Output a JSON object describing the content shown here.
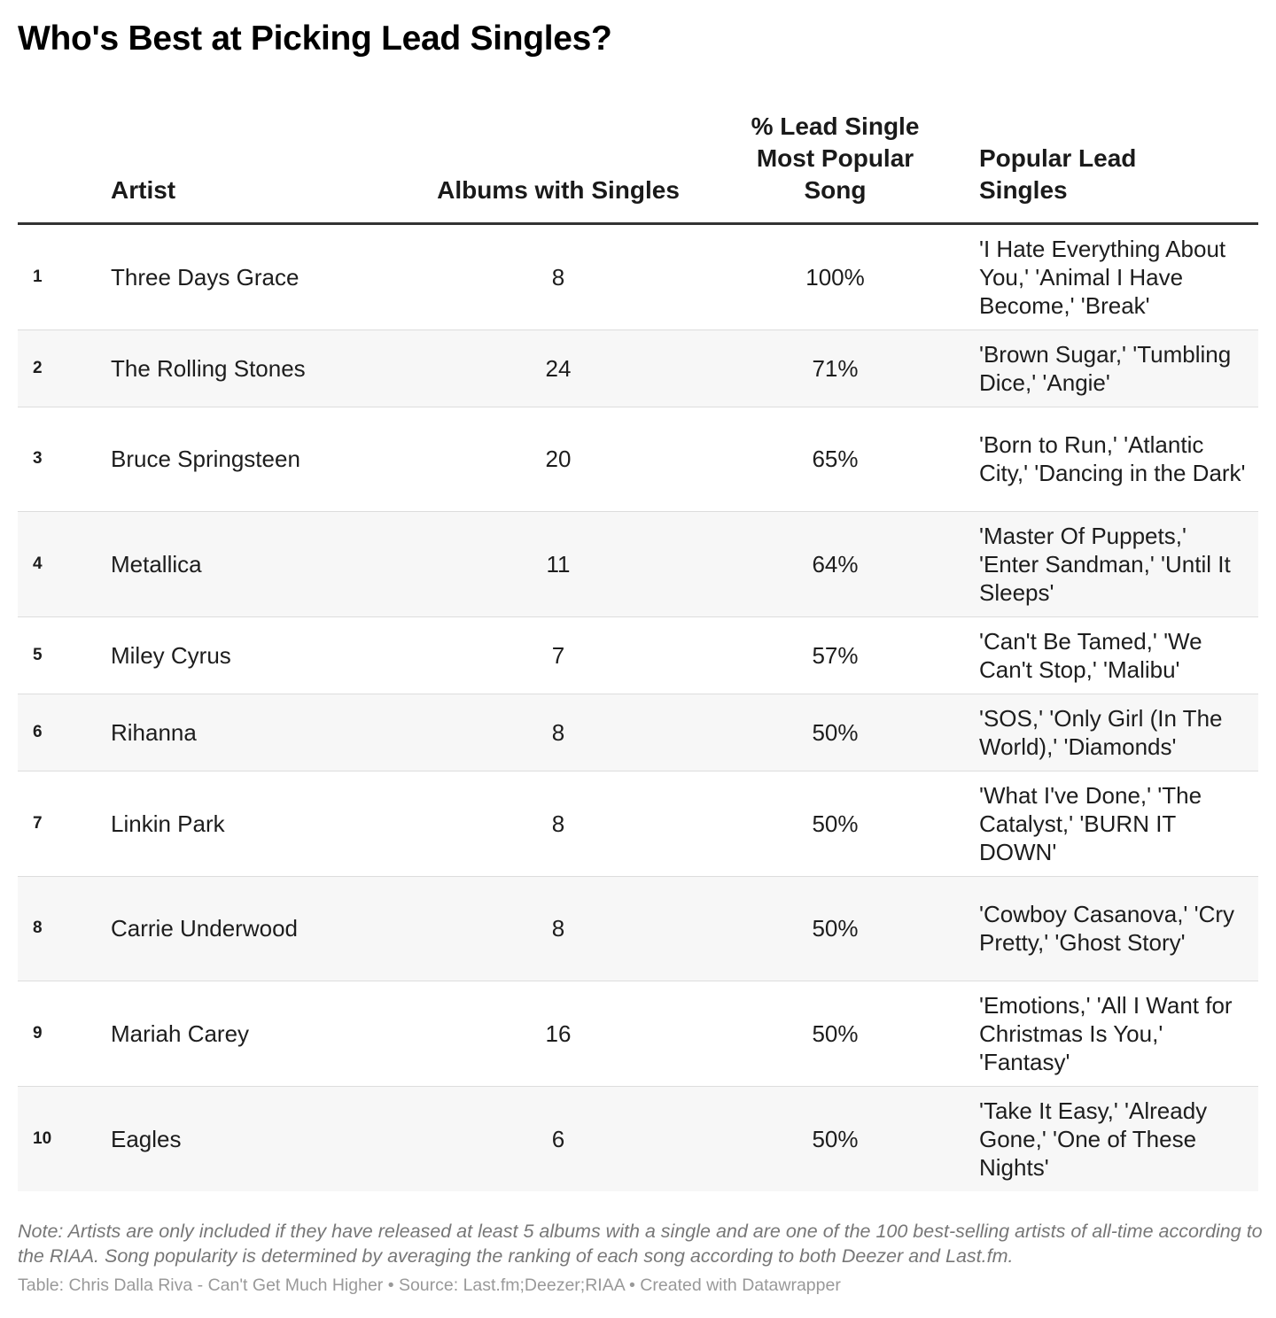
{
  "chart_data": {
    "type": "table",
    "title": "Who's Best at Picking Lead Singles?",
    "columns": {
      "rank": "",
      "artist": "Artist",
      "albums": "Albums with Singles",
      "pct": "% Lead Single Most Popular Song",
      "songs": "Popular Lead Singles"
    },
    "rows": [
      {
        "rank": "1",
        "artist": "Three Days Grace",
        "albums": "8",
        "pct": "100%",
        "songs": "'I Hate Everything About You,' 'Animal I Have Become,' 'Break'"
      },
      {
        "rank": "2",
        "artist": "The Rolling Stones",
        "albums": "24",
        "pct": "71%",
        "songs": "'Brown Sugar,' 'Tumbling Dice,' 'Angie'"
      },
      {
        "rank": "3",
        "artist": "Bruce Springsteen",
        "albums": "20",
        "pct": "65%",
        "songs": "'Born to Run,' 'Atlantic City,' 'Dancing in the Dark'"
      },
      {
        "rank": "4",
        "artist": "Metallica",
        "albums": "11",
        "pct": "64%",
        "songs": "'Master Of Puppets,' 'Enter Sandman,' 'Until It Sleeps'"
      },
      {
        "rank": "5",
        "artist": "Miley Cyrus",
        "albums": "7",
        "pct": "57%",
        "songs": "'Can't Be Tamed,' 'We Can't Stop,' 'Malibu'"
      },
      {
        "rank": "6",
        "artist": "Rihanna",
        "albums": "8",
        "pct": "50%",
        "songs": "'SOS,' 'Only Girl (In The World),' 'Diamonds'"
      },
      {
        "rank": "7",
        "artist": "Linkin Park",
        "albums": "8",
        "pct": "50%",
        "songs": "'What I've Done,' 'The Catalyst,' 'BURN IT DOWN'"
      },
      {
        "rank": "8",
        "artist": "Carrie Underwood",
        "albums": "8",
        "pct": "50%",
        "songs": "'Cowboy Casanova,' 'Cry Pretty,' 'Ghost Story'"
      },
      {
        "rank": "9",
        "artist": "Mariah Carey",
        "albums": "16",
        "pct": "50%",
        "songs": "'Emotions,' 'All I Want for Christmas Is You,' 'Fantasy'"
      },
      {
        "rank": "10",
        "artist": "Eagles",
        "albums": "6",
        "pct": "50%",
        "songs": "'Take It Easy,' 'Already Gone,' 'One of These Nights'"
      }
    ],
    "note": "Note: Artists are only included if they have released at least 5 albums with a single and are one of the 100 best-selling artists of all-time according to the RIAA. Song popularity is determined by averaging the ranking of each song according to both Deezer and Last.fm.",
    "credit": "Table: Chris Dalla Riva - Can't Get Much Higher • Source: Last.fm;Deezer;RIAA • Created with Datawrapper"
  }
}
